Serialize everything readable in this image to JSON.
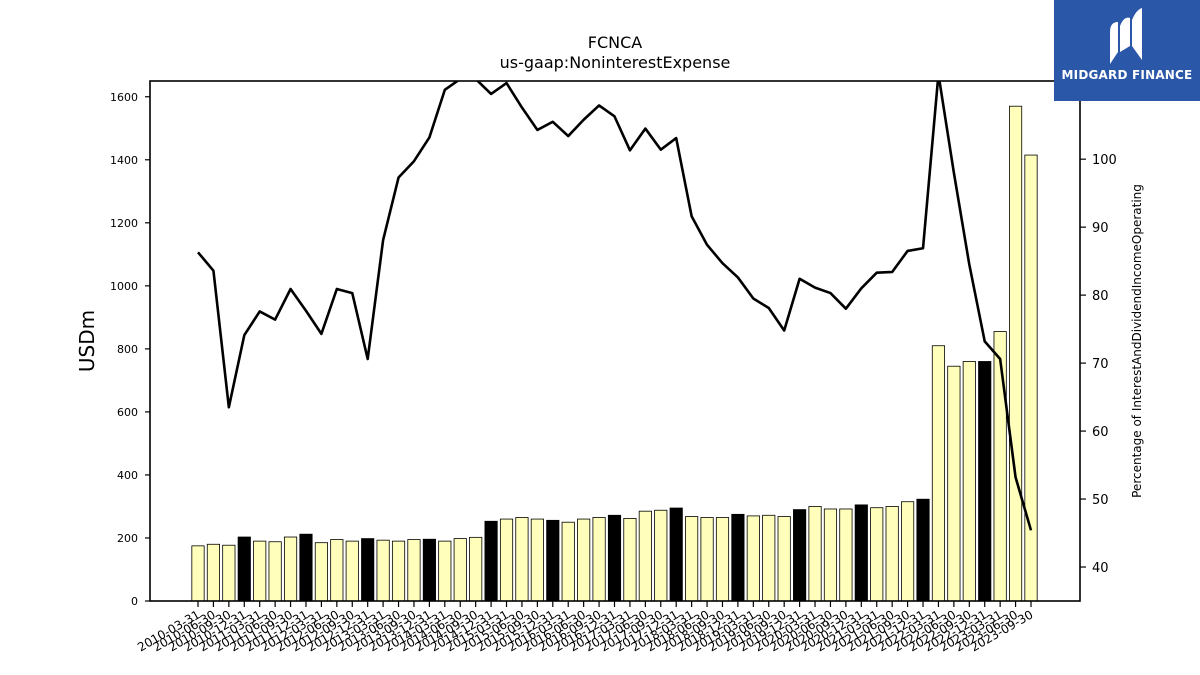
{
  "chart_data": {
    "type": "bar",
    "title": "FCNCA",
    "subtitle": "us-gaap:NoninterestExpense",
    "ylabel": "USDm",
    "y2label": "Percentage of InterestAndDividendIncomeOperating",
    "ylim": [
      0,
      1650
    ],
    "y2lim": [
      35,
      111.5
    ],
    "yticks": [
      0,
      200,
      400,
      600,
      800,
      1000,
      1200,
      1400,
      1600
    ],
    "y2ticks": [
      40,
      50,
      60,
      70,
      80,
      90,
      100
    ],
    "categories": [
      "2010-03-31",
      "2010-06-30",
      "2010-09-30",
      "2010-12-31",
      "2011-03-31",
      "2011-06-30",
      "2011-09-30",
      "2011-12-31",
      "2012-03-31",
      "2012-06-30",
      "2012-09-30",
      "2012-12-31",
      "2013-03-31",
      "2013-06-30",
      "2013-09-30",
      "2013-12-31",
      "2014-03-31",
      "2014-06-30",
      "2014-09-30",
      "2014-12-31",
      "2015-03-31",
      "2015-06-30",
      "2015-09-30",
      "2015-12-31",
      "2016-03-31",
      "2016-06-30",
      "2016-09-30",
      "2016-12-31",
      "2017-03-31",
      "2017-06-30",
      "2017-09-30",
      "2017-12-31",
      "2018-03-31",
      "2018-06-30",
      "2018-09-30",
      "2018-12-31",
      "2019-03-31",
      "2019-06-30",
      "2019-09-30",
      "2019-12-31",
      "2020-03-31",
      "2020-06-30",
      "2020-09-30",
      "2020-12-31",
      "2021-03-31",
      "2021-06-30",
      "2021-09-30",
      "2021-12-31",
      "2022-03-31",
      "2022-06-30",
      "2022-09-30",
      "2022-12-31",
      "2023-03-31",
      "2023-06-30",
      "2023-09-30"
    ],
    "series": [
      {
        "type": "bar",
        "values": [
          175,
          180,
          177,
          203,
          190,
          188,
          203,
          212,
          185,
          195,
          190,
          198,
          193,
          190,
          195,
          196,
          190,
          198,
          202,
          253,
          260,
          265,
          260,
          256,
          250,
          260,
          265,
          272,
          262,
          285,
          288,
          295,
          268,
          265,
          265,
          275,
          270,
          272,
          268,
          290,
          300,
          292,
          292,
          305,
          296,
          300,
          315,
          323,
          810,
          745,
          760,
          760,
          855,
          1570,
          1415
        ],
        "dark_quarter": "Q4",
        "colors": {
          "bar": "#ffffbb",
          "bar_q4": "#000000",
          "edge": "#000000"
        }
      },
      {
        "type": "line",
        "axis": "right",
        "color": "#000000",
        "values": [
          86.3,
          83.6,
          63.5,
          74.1,
          77.6,
          76.4,
          80.9,
          77.7,
          74.3,
          80.9,
          80.3,
          70.6,
          88.1,
          97.3,
          99.7,
          103.2,
          110.2,
          111.8,
          111.8,
          109.6,
          111.2,
          107.6,
          104.3,
          105.5,
          103.4,
          105.8,
          107.9,
          106.3,
          101.3,
          104.5,
          101.4,
          103.1,
          91.6,
          87.4,
          84.7,
          82.6,
          79.5,
          78.1,
          74.8,
          82.4,
          81.1,
          80.3,
          78.0,
          81.0,
          83.3,
          83.4,
          86.5,
          86.9,
          112.5,
          98.0,
          84.5,
          73.2,
          70.6,
          53.2,
          45.4
        ]
      }
    ]
  },
  "logo": {
    "text": "MIDGARD FINANCE",
    "icon": "midgard-logo-icon",
    "background": "#2b57a8"
  }
}
